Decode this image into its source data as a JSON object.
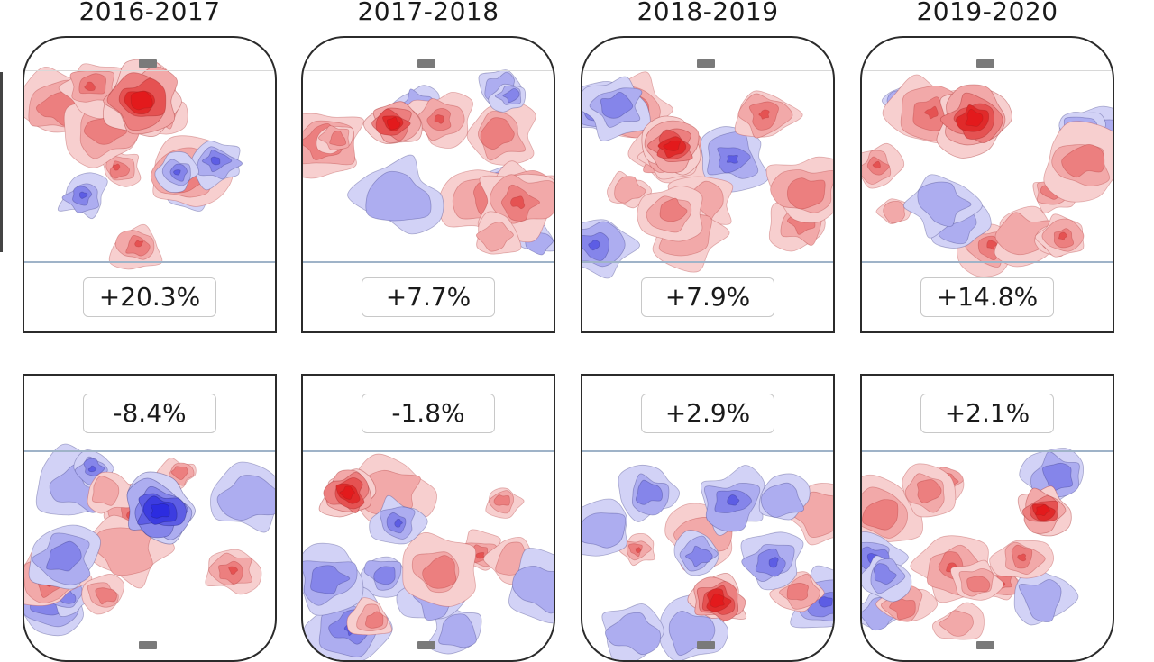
{
  "chart_data": {
    "type": "heatmap",
    "seasons": [
      "2016-2017",
      "2017-2018",
      "2018-2019",
      "2019-2020"
    ],
    "offense_change": [
      "+20.3%",
      "+7.7%",
      "+7.9%",
      "+14.8%"
    ],
    "defense_change": [
      "-8.4%",
      "-1.8%",
      "+2.9%",
      "+2.1%"
    ],
    "color_positive": "#e31a1c",
    "color_negative": "#2c2ce0",
    "colors": {
      "line": "#9fb3c8",
      "border": "#2b2b2b",
      "net": "#7a7a7a"
    }
  }
}
